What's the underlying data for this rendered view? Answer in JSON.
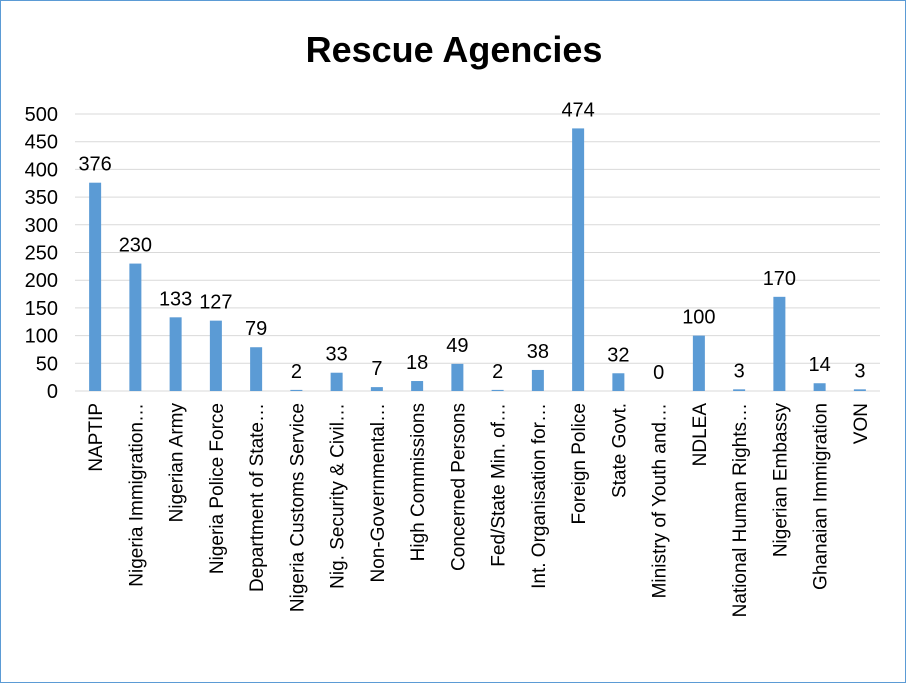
{
  "chart_data": {
    "type": "bar",
    "title": "Rescue Agencies",
    "xlabel": "",
    "ylabel": "",
    "ylim": [
      0,
      500
    ],
    "yticks": [
      0,
      50,
      100,
      150,
      200,
      250,
      300,
      350,
      400,
      450,
      500
    ],
    "grid": true,
    "legend": "none",
    "bar_color": "#5b9bd5",
    "categories": [
      "NAPTIP",
      "Nigeria Immigration…",
      "Nigerian Army",
      "Nigeria Police Force",
      "Department of State…",
      "Nigeria Customs Service",
      "Nig. Security & Civil…",
      "Non-Governmental…",
      "High Commissions",
      "Concerned Persons",
      "Fed/State Min. of…",
      "Int. Organisation for…",
      "Foreign Police",
      "State Govt.",
      "Ministry of Youth and…",
      "NDLEA",
      "National Human Rights…",
      "Nigerian Embassy",
      "Ghanaian Immigration",
      "VON"
    ],
    "values": [
      376,
      230,
      133,
      127,
      79,
      2,
      33,
      7,
      18,
      49,
      2,
      38,
      474,
      32,
      0,
      100,
      3,
      170,
      14,
      3
    ]
  }
}
